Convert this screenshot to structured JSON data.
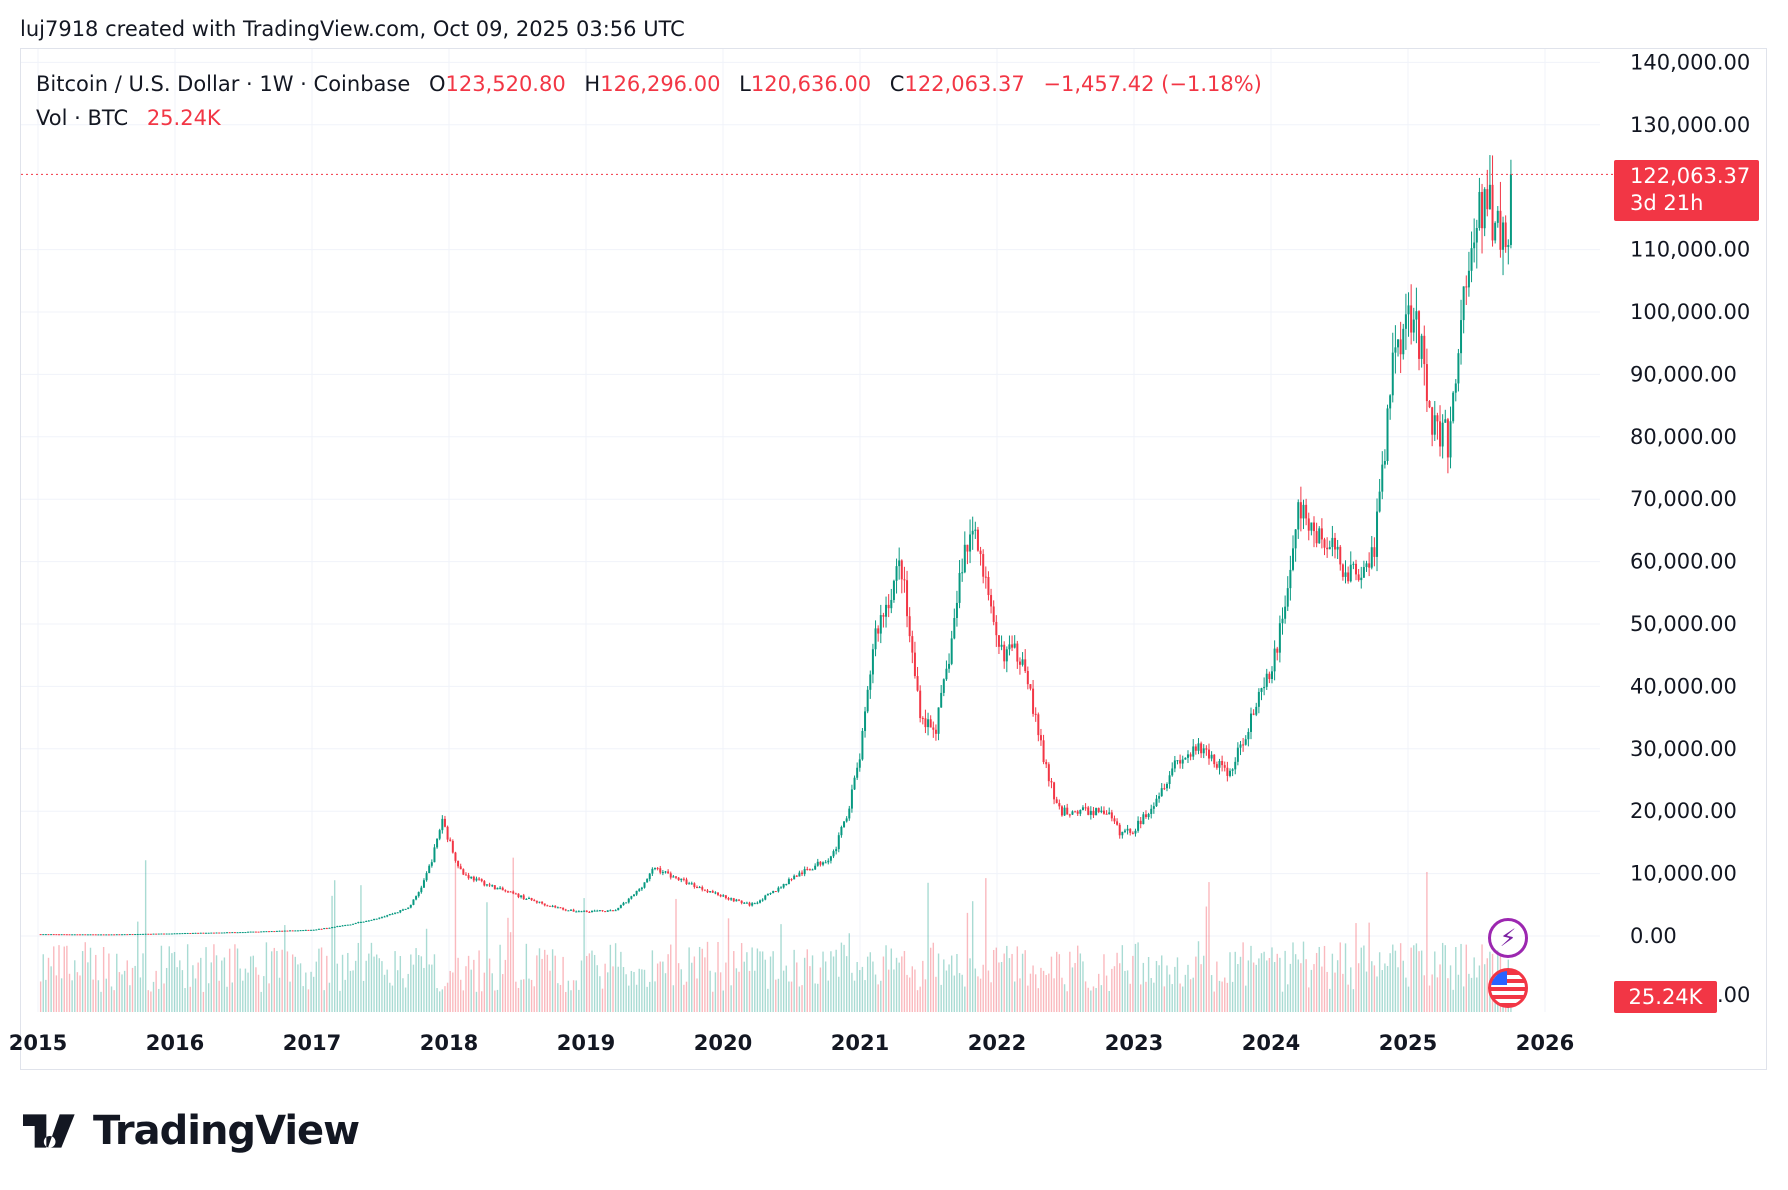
{
  "credit": "luj7918 created with TradingView.com, Oct 09, 2025 03:56 UTC",
  "legend": {
    "symbol": "Bitcoin / U.S. Dollar · 1W · Coinbase",
    "o_label": "O",
    "o": "123,520.80",
    "h_label": "H",
    "h": "126,296.00",
    "l_label": "L",
    "l": "120,636.00",
    "c_label": "C",
    "c": "122,063.37",
    "change": "−1,457.42 (−1.18%)",
    "vol_label": "Vol · BTC",
    "vol": "25.24K"
  },
  "price_badge": {
    "price": "122,063.37",
    "countdown": "3d 21h"
  },
  "vol_badge": {
    "value": "25.24K",
    "tail": ".00"
  },
  "logo_text": "TradingView",
  "colors": {
    "up": "#089981",
    "down": "#f23645",
    "grid": "#f0f3fa"
  },
  "chart_data": {
    "type": "candlestick",
    "title": "Bitcoin / U.S. Dollar · 1W · Coinbase",
    "ylim": [
      0,
      140000
    ],
    "yticks": [
      "140,000.00",
      "130,000.00",
      "110,000.00",
      "100,000.00",
      "90,000.00",
      "80,000.00",
      "70,000.00",
      "60,000.00",
      "50,000.00",
      "40,000.00",
      "30,000.00",
      "20,000.00",
      "10,000.00",
      "0.00"
    ],
    "ytick_values": [
      140000,
      130000,
      110000,
      100000,
      90000,
      80000,
      70000,
      60000,
      50000,
      40000,
      30000,
      20000,
      10000,
      0
    ],
    "xticks": [
      "2015",
      "2016",
      "2017",
      "2018",
      "2019",
      "2020",
      "2021",
      "2022",
      "2023",
      "2024",
      "2025",
      "2026"
    ],
    "xlim": [
      2015,
      2026
    ],
    "last_close": 122063.37,
    "close_path": [
      [
        2015.0,
        300
      ],
      [
        2015.5,
        250
      ],
      [
        2016.0,
        430
      ],
      [
        2016.5,
        650
      ],
      [
        2017.0,
        1000
      ],
      [
        2017.4,
        2500
      ],
      [
        2017.7,
        4500
      ],
      [
        2017.95,
        19000
      ],
      [
        2018.1,
        10000
      ],
      [
        2018.5,
        6500
      ],
      [
        2018.9,
        4000
      ],
      [
        2019.2,
        4000
      ],
      [
        2019.5,
        11000
      ],
      [
        2019.9,
        7200
      ],
      [
        2020.2,
        5000
      ],
      [
        2020.5,
        9300
      ],
      [
        2020.8,
        13000
      ],
      [
        2021.0,
        29000
      ],
      [
        2021.1,
        48000
      ],
      [
        2021.3,
        60000
      ],
      [
        2021.45,
        35000
      ],
      [
        2021.55,
        33000
      ],
      [
        2021.75,
        61000
      ],
      [
        2021.85,
        66000
      ],
      [
        2022.0,
        46000
      ],
      [
        2022.2,
        45000
      ],
      [
        2022.45,
        20000
      ],
      [
        2022.8,
        20000
      ],
      [
        2022.9,
        16500
      ],
      [
        2023.0,
        17000
      ],
      [
        2023.3,
        28000
      ],
      [
        2023.5,
        30000
      ],
      [
        2023.7,
        26000
      ],
      [
        2023.85,
        35000
      ],
      [
        2024.0,
        42000
      ],
      [
        2024.2,
        68000
      ],
      [
        2024.6,
        58000
      ],
      [
        2024.75,
        62000
      ],
      [
        2024.9,
        95000
      ],
      [
        2025.05,
        102000
      ],
      [
        2025.15,
        84000
      ],
      [
        2025.3,
        79000
      ],
      [
        2025.4,
        103000
      ],
      [
        2025.55,
        118000
      ],
      [
        2025.65,
        115000
      ],
      [
        2025.72,
        110000
      ],
      [
        2025.77,
        122063.37
      ]
    ]
  }
}
